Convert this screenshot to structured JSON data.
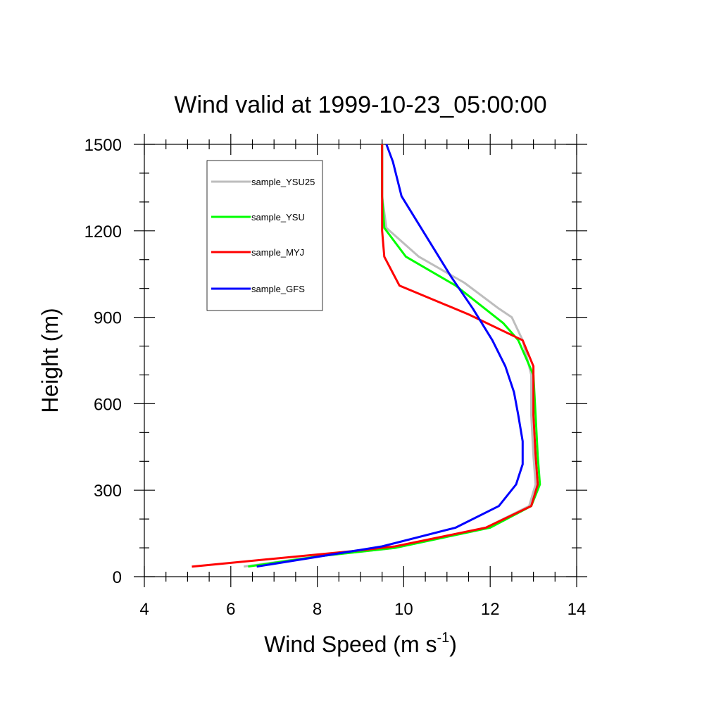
{
  "chart_data": {
    "type": "line",
    "title": "Wind valid at 1999-10-23_05:00:00",
    "xlabel": "Wind Speed (m s",
    "xlabel_sup": "-1",
    "xlabel_end": ")",
    "ylabel": "Height (m)",
    "xlim": [
      4,
      14
    ],
    "ylim": [
      0,
      1500
    ],
    "xticks": [
      4,
      6,
      8,
      10,
      12,
      14
    ],
    "yticks": [
      0,
      300,
      600,
      900,
      1200,
      1500
    ],
    "grid": false,
    "legend_position": "top-left",
    "series": [
      {
        "name": "sample_YSU25",
        "color": "#bdbdbd",
        "points": [
          [
            6.3,
            35
          ],
          [
            8.0,
            70
          ],
          [
            9.8,
            100
          ],
          [
            11.9,
            170
          ],
          [
            12.9,
            245
          ],
          [
            13.05,
            320
          ],
          [
            13.0,
            420
          ],
          [
            12.95,
            560
          ],
          [
            12.95,
            700
          ],
          [
            12.75,
            820
          ],
          [
            12.5,
            900
          ],
          [
            12.2,
            930
          ],
          [
            11.4,
            1020
          ],
          [
            10.35,
            1110
          ],
          [
            9.6,
            1210
          ],
          [
            9.5,
            1320
          ],
          [
            9.5,
            1500
          ]
        ]
      },
      {
        "name": "sample_YSU",
        "color": "#00ff00",
        "points": [
          [
            6.4,
            35
          ],
          [
            8.0,
            70
          ],
          [
            9.8,
            100
          ],
          [
            12.0,
            170
          ],
          [
            12.95,
            245
          ],
          [
            13.15,
            320
          ],
          [
            13.1,
            420
          ],
          [
            13.05,
            560
          ],
          [
            13.0,
            700
          ],
          [
            12.65,
            820
          ],
          [
            12.3,
            880
          ],
          [
            11.2,
            1010
          ],
          [
            10.05,
            1110
          ],
          [
            9.55,
            1210
          ],
          [
            9.5,
            1320
          ],
          [
            9.5,
            1500
          ]
        ]
      },
      {
        "name": "sample_MYJ",
        "color": "#ff0000",
        "points": [
          [
            5.1,
            35
          ],
          [
            8.9,
            90
          ],
          [
            9.8,
            105
          ],
          [
            11.9,
            170
          ],
          [
            12.95,
            245
          ],
          [
            13.1,
            320
          ],
          [
            13.05,
            420
          ],
          [
            13.0,
            560
          ],
          [
            13.0,
            730
          ],
          [
            12.75,
            820
          ],
          [
            11.5,
            910
          ],
          [
            9.9,
            1010
          ],
          [
            9.55,
            1110
          ],
          [
            9.5,
            1200
          ],
          [
            9.5,
            1320
          ],
          [
            9.5,
            1500
          ]
        ]
      },
      {
        "name": "sample_GFS",
        "color": "#0000ff",
        "points": [
          [
            6.6,
            35
          ],
          [
            9.5,
            105
          ],
          [
            11.2,
            170
          ],
          [
            12.2,
            245
          ],
          [
            12.6,
            320
          ],
          [
            12.75,
            390
          ],
          [
            12.75,
            470
          ],
          [
            12.65,
            560
          ],
          [
            12.55,
            640
          ],
          [
            12.35,
            730
          ],
          [
            12.05,
            820
          ],
          [
            11.6,
            930
          ],
          [
            11.1,
            1040
          ],
          [
            10.4,
            1210
          ],
          [
            9.95,
            1320
          ],
          [
            9.75,
            1440
          ],
          [
            9.6,
            1500
          ]
        ]
      }
    ]
  }
}
